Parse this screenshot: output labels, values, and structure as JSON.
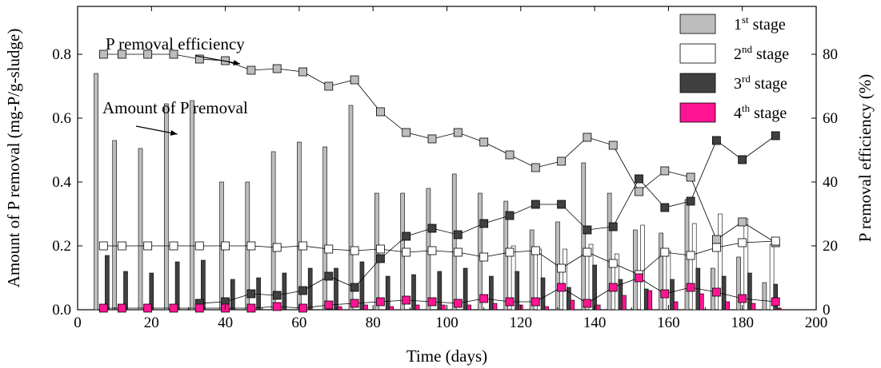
{
  "chart_data": {
    "type": "bar",
    "xlabel": "Time (days)",
    "ylabel_left": "Amount of P removal (mg-P/g-sludge)",
    "ylabel_right": "P removal efficiency (%)",
    "xlim": [
      0,
      200
    ],
    "ylim_left": [
      0,
      0.95
    ],
    "ylim_right": [
      0,
      95
    ],
    "x_ticks": [
      0,
      20,
      40,
      60,
      80,
      100,
      120,
      140,
      160,
      180,
      200
    ],
    "x_tick_labels": [
      "0",
      "20",
      "40",
      "60",
      "80",
      "100",
      "120",
      "140",
      "160",
      "180",
      "200"
    ],
    "y_left_ticks": [
      0.0,
      0.2,
      0.4,
      0.6,
      0.8
    ],
    "y_left_tick_labels": [
      "0.0",
      "0.2",
      "0.4",
      "0.6",
      "0.8"
    ],
    "y_right_ticks": [
      0,
      20,
      40,
      60,
      80
    ],
    "y_right_tick_labels": [
      "0",
      "20",
      "40",
      "60",
      "80"
    ],
    "legend_position": "top-right",
    "annotations": [
      {
        "text": "P removal efficiency",
        "arrow_to_x": 44,
        "arrow_to_y_right": 77
      },
      {
        "text": "Amount of P removal",
        "arrow_to_x": 27,
        "arrow_to_y_left": 0.55
      }
    ],
    "bar_series": [
      {
        "name": "1",
        "superscript": "st",
        "suffix": " stage",
        "color": "#bdbdbd",
        "x": [
          5,
          10,
          17,
          24,
          31,
          39,
          46,
          53,
          60,
          67,
          74,
          81,
          88,
          95,
          102,
          109,
          116,
          123,
          130,
          137,
          144,
          151,
          158,
          165,
          172,
          179,
          186
        ],
        "values": [
          0.74,
          0.53,
          0.505,
          0.645,
          0.655,
          0.4,
          0.4,
          0.495,
          0.525,
          0.51,
          0.64,
          0.365,
          0.365,
          0.38,
          0.425,
          0.365,
          0.34,
          0.25,
          0.275,
          0.46,
          0.365,
          0.25,
          0.24,
          0.345,
          0.13,
          0.165,
          0.085
        ]
      },
      {
        "name": "2",
        "superscript": "nd",
        "suffix": " stage",
        "color": "#ffffff",
        "x": [
          7,
          12,
          19,
          26,
          33,
          41,
          48,
          55,
          62,
          69,
          76,
          83,
          90,
          97,
          104,
          111,
          118,
          125,
          132,
          139,
          146,
          153,
          160,
          167,
          174,
          181,
          188
        ],
        "values": [
          0.0,
          0.0,
          0.0,
          0.0,
          0.0,
          0.0,
          0.0,
          0.0,
          0.0,
          0.0,
          0.0,
          0.0,
          0.0,
          0.0,
          0.0,
          0.0,
          0.2,
          0.19,
          0.19,
          0.205,
          0.175,
          0.265,
          0.185,
          0.27,
          0.3,
          0.285,
          0.205
        ]
      },
      {
        "name": "3",
        "superscript": "rd",
        "suffix": " stage",
        "color": "#404040",
        "x": [
          8,
          13,
          20,
          27,
          34,
          42,
          49,
          56,
          63,
          70,
          77,
          84,
          91,
          98,
          105,
          112,
          119,
          126,
          133,
          140,
          147,
          154,
          161,
          168,
          175,
          182,
          189
        ],
        "values": [
          0.17,
          0.12,
          0.115,
          0.15,
          0.155,
          0.095,
          0.1,
          0.115,
          0.13,
          0.13,
          0.15,
          0.105,
          0.11,
          0.12,
          0.13,
          0.105,
          0.12,
          0.1,
          0.07,
          0.14,
          0.095,
          0.065,
          0.095,
          0.13,
          0.105,
          0.115,
          0.08
        ]
      },
      {
        "name": "4",
        "superscript": "th",
        "suffix": " stage",
        "color": "#ff1493",
        "x": [
          9,
          14,
          21,
          28,
          35,
          43,
          50,
          57,
          64,
          71,
          78,
          85,
          92,
          99,
          106,
          113,
          120,
          127,
          134,
          141,
          148,
          155,
          162,
          169,
          176,
          183,
          190
        ],
        "values": [
          0.0,
          0.0,
          0.0,
          0.0,
          0.0,
          0.0,
          0.0,
          0.0,
          0.0,
          0.01,
          0.015,
          0.01,
          0.015,
          0.015,
          0.015,
          0.02,
          0.015,
          0.01,
          0.03,
          0.015,
          0.045,
          0.06,
          0.025,
          0.05,
          0.025,
          0.02,
          0.005
        ]
      }
    ],
    "line_series": [
      {
        "color": "#bdbdbd",
        "x": [
          7,
          12,
          19,
          26,
          33,
          40,
          47,
          54,
          61,
          68,
          75,
          82,
          89,
          96,
          103,
          110,
          117,
          124,
          131,
          138,
          145,
          152,
          159,
          166,
          173,
          180,
          189
        ],
        "values": [
          80,
          80,
          80,
          80,
          78.5,
          78,
          75,
          75.5,
          74.5,
          70,
          72,
          62,
          55.5,
          53.5,
          55.5,
          52.5,
          48.5,
          44.5,
          46.5,
          54,
          51.5,
          37,
          43.5,
          41.5,
          22,
          27.5,
          21
        ]
      },
      {
        "color": "#ffffff",
        "x": [
          7,
          12,
          19,
          26,
          33,
          40,
          47,
          54,
          61,
          68,
          75,
          82,
          89,
          96,
          103,
          110,
          117,
          124,
          131,
          138,
          145,
          152,
          159,
          166,
          173,
          180,
          189
        ],
        "values": [
          20,
          20,
          20,
          20,
          20,
          20,
          20,
          19.5,
          20,
          19,
          18.5,
          19,
          18,
          18.5,
          18,
          16.5,
          18,
          18.5,
          13,
          18,
          14.5,
          11,
          18,
          17,
          19.5,
          21,
          21.5
        ]
      },
      {
        "color": "#404040",
        "x": [
          33,
          40,
          47,
          54,
          61,
          68,
          75,
          82,
          89,
          96,
          103,
          110,
          117,
          124,
          131,
          138,
          145,
          152,
          159,
          166,
          173,
          180,
          189
        ],
        "values": [
          2,
          2.5,
          5,
          4.5,
          6,
          10.5,
          7,
          16,
          23,
          25.5,
          23.5,
          27,
          29.5,
          33,
          33,
          25,
          26,
          41,
          32,
          34,
          53,
          47,
          54.5
        ]
      },
      {
        "color": "#ff1493",
        "x": [
          7,
          12,
          19,
          26,
          33,
          40,
          47,
          54,
          61,
          68,
          75,
          82,
          89,
          96,
          103,
          110,
          117,
          124,
          131,
          138,
          145,
          152,
          159,
          166,
          173,
          180,
          189
        ],
        "values": [
          0.5,
          0.5,
          0.5,
          0.5,
          0.5,
          0.5,
          0.5,
          1,
          0.5,
          1.5,
          2,
          2.5,
          3,
          2.5,
          2,
          3.5,
          2.5,
          2.5,
          7,
          2,
          7,
          10,
          5,
          7,
          5.5,
          3.5,
          2.5
        ]
      }
    ]
  }
}
